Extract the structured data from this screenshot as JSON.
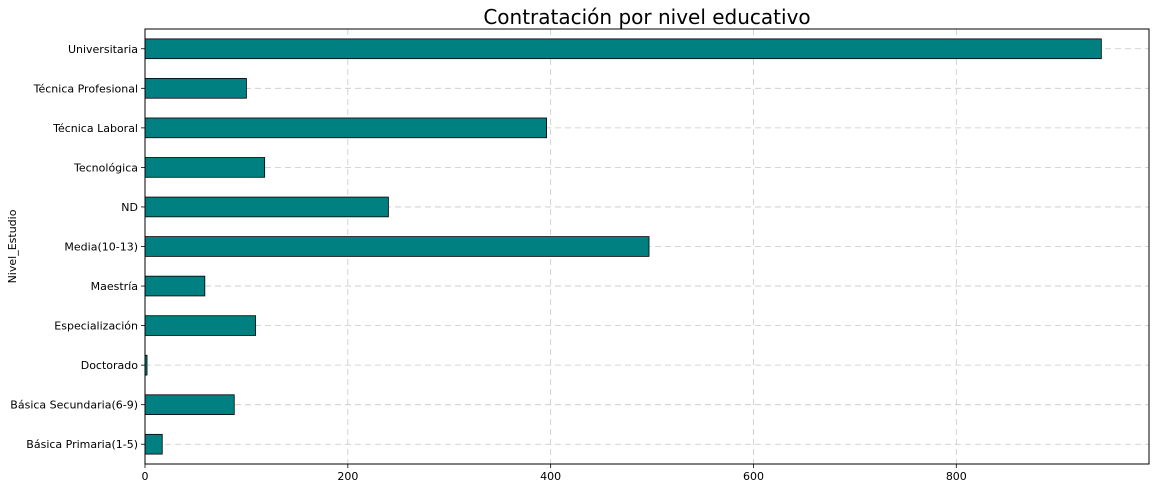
{
  "chart_data": {
    "type": "bar",
    "orientation": "horizontal",
    "title": "Contratación por nivel educativo",
    "xlabel": "",
    "ylabel": "Nivel_Estudio",
    "categories": [
      "Universitaria",
      "Técnica Profesional",
      "Técnica Laboral",
      "Tecnológica",
      "ND",
      "Media(10-13)",
      "Maestría",
      "Especialización",
      "Doctorado",
      "Básica Secundaria(6-9)",
      "Básica Primaria(1-5)"
    ],
    "values": [
      943,
      100,
      396,
      118,
      240,
      497,
      59,
      109,
      2,
      88,
      17
    ],
    "xlim": [
      0,
      990
    ],
    "xticks": [
      0,
      200,
      400,
      600,
      800
    ],
    "grid": true,
    "bar_color": "#008080"
  }
}
